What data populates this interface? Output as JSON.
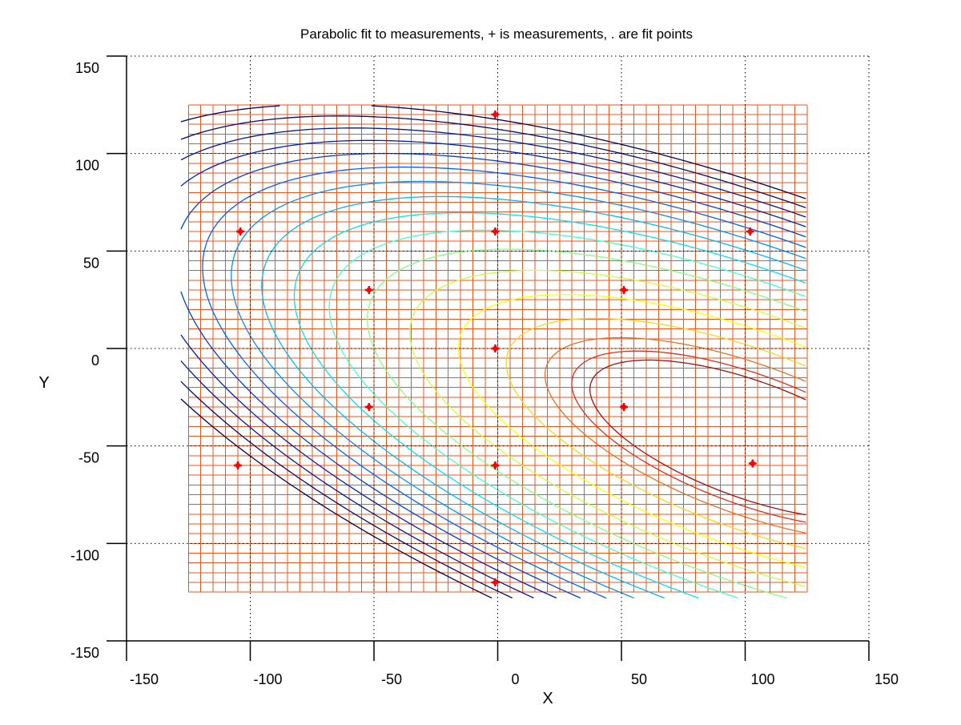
{
  "chart_data": {
    "type": "contour",
    "title": "Parabolic fit to measurements, + is measurements, . are fit points",
    "xlabel": "X",
    "ylabel": "Y",
    "xlim": [
      -150,
      150
    ],
    "ylim": [
      -150,
      150
    ],
    "x_ticks": [
      "-150",
      "-100",
      "-50",
      "0",
      "50",
      "100",
      "150"
    ],
    "y_ticks": [
      "150",
      "100",
      "50",
      "0",
      "-50",
      "-100",
      "-150"
    ],
    "grid": "dotted",
    "fit_grid": {
      "x_range": [
        -125,
        125
      ],
      "y_range": [
        -125,
        125
      ],
      "step": 5,
      "color": "#e8541e"
    },
    "surface": {
      "form": "z = x^2 + 2*x*y + 2.5*y^2 - 110*x + 30*y",
      "contour_levels": [
        -3800,
        -3200,
        -2200,
        -500,
        2000,
        5000,
        8000,
        11000,
        14000,
        17000,
        20000,
        23000,
        26000,
        29000,
        32000,
        35000,
        38000
      ],
      "level_colors": [
        "#a01010",
        "#d83020",
        "#e87020",
        "#ffd21e",
        "#ffff00",
        "#c8ff40",
        "#80ff80",
        "#40ffd0",
        "#00e0ff",
        "#00b8ff",
        "#0090ff",
        "#0060ff",
        "#0040d0",
        "#0020b0",
        "#001890",
        "#000c70",
        "#000050"
      ]
    },
    "measurements": {
      "color": "#ff0000",
      "points": [
        [
          -1,
          120
        ],
        [
          -104,
          60
        ],
        [
          -1,
          60
        ],
        [
          102,
          60
        ],
        [
          -52,
          30
        ],
        [
          51,
          30
        ],
        [
          -1,
          0
        ],
        [
          -52,
          -30
        ],
        [
          51,
          -30
        ],
        [
          -105,
          -60
        ],
        [
          -1,
          -60
        ],
        [
          103,
          -59
        ],
        [
          -1,
          -120
        ]
      ]
    }
  }
}
